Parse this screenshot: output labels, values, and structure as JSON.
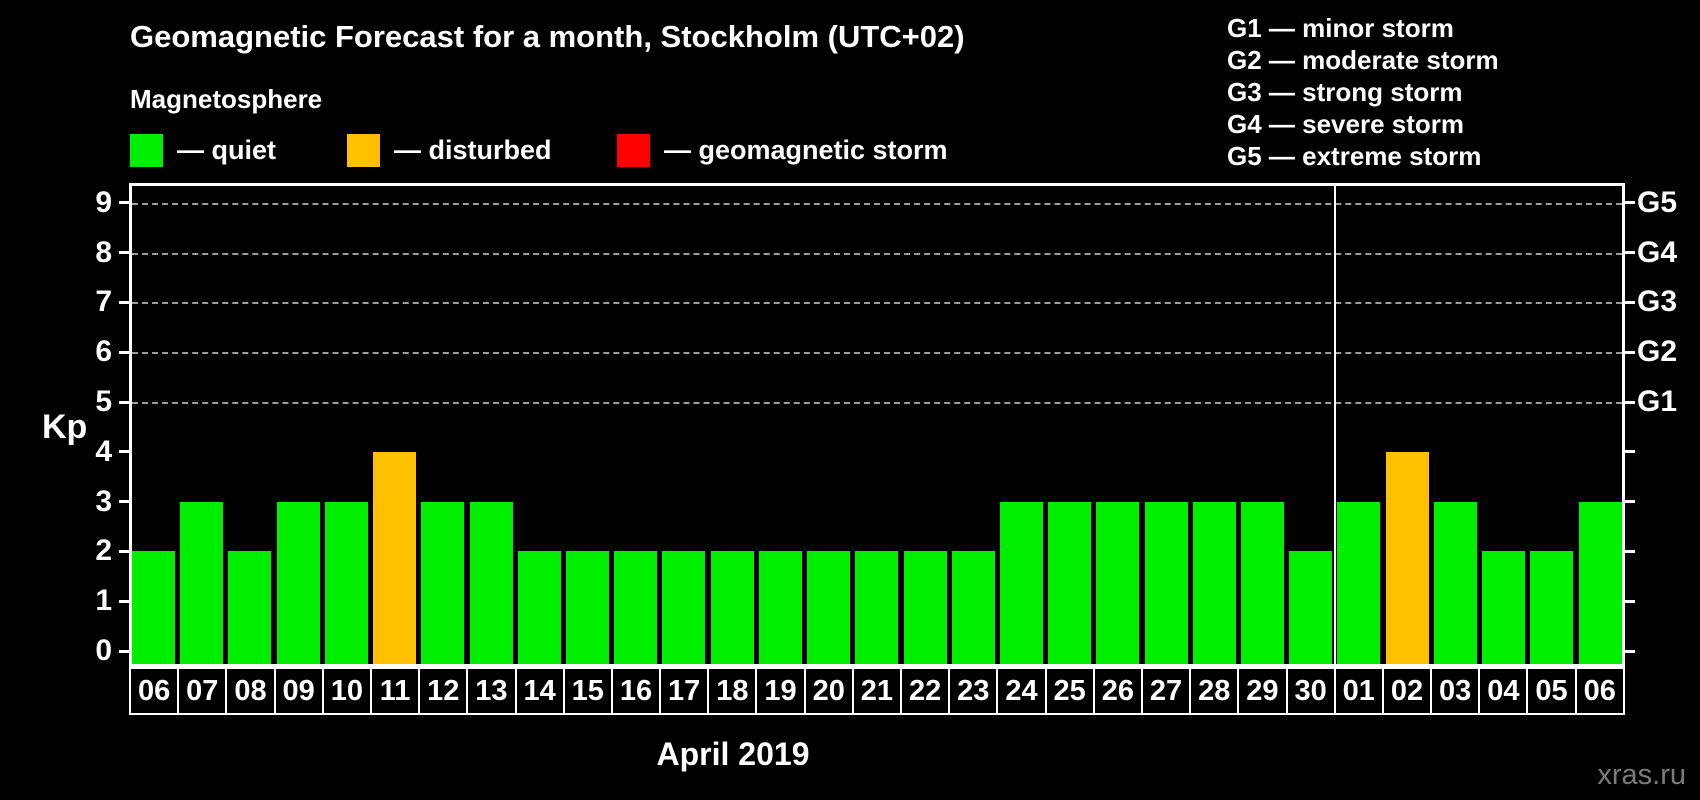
{
  "title": "Geomagnetic Forecast for a month, Stockholm (UTC+02)",
  "legend": {
    "title": "Magnetosphere",
    "items": [
      {
        "name": "quiet",
        "label": "— quiet",
        "color": "#00ee00"
      },
      {
        "name": "disturbed",
        "label": "— disturbed",
        "color": "#ffc000"
      },
      {
        "name": "storm",
        "label": "— geomagnetic storm",
        "color": "#ff0000"
      }
    ]
  },
  "storm_scale": [
    {
      "label": "G1 — minor storm"
    },
    {
      "label": "G2 — moderate storm"
    },
    {
      "label": "G3 — strong storm"
    },
    {
      "label": "G4 — severe storm"
    },
    {
      "label": "G5 — extreme storm"
    }
  ],
  "axis": {
    "y_title": "Kp",
    "y_ticks": [
      0,
      1,
      2,
      3,
      4,
      5,
      6,
      7,
      8,
      9
    ],
    "right_labels": [
      {
        "label": "G1",
        "kp": 5
      },
      {
        "label": "G2",
        "kp": 6
      },
      {
        "label": "G3",
        "kp": 7
      },
      {
        "label": "G4",
        "kp": 8
      },
      {
        "label": "G5",
        "kp": 9
      }
    ],
    "x_title": "April 2019"
  },
  "watermark": "xras.ru",
  "chart_data": {
    "type": "bar",
    "title": "Geomagnetic Forecast for a month, Stockholm (UTC+02)",
    "xlabel": "April 2019",
    "ylabel": "Kp",
    "ylim": [
      0,
      9
    ],
    "categories": [
      "06",
      "07",
      "08",
      "09",
      "10",
      "11",
      "12",
      "13",
      "14",
      "15",
      "16",
      "17",
      "18",
      "19",
      "20",
      "21",
      "22",
      "23",
      "24",
      "25",
      "26",
      "27",
      "28",
      "29",
      "30",
      "01",
      "02",
      "03",
      "04",
      "05",
      "06"
    ],
    "values": [
      2,
      3,
      2,
      3,
      3,
      4,
      3,
      3,
      2,
      2,
      2,
      2,
      2,
      2,
      2,
      2,
      2,
      2,
      3,
      3,
      3,
      3,
      3,
      3,
      2,
      3,
      4,
      3,
      2,
      2,
      3
    ],
    "statuses": [
      "quiet",
      "quiet",
      "quiet",
      "quiet",
      "quiet",
      "disturbed",
      "quiet",
      "quiet",
      "quiet",
      "quiet",
      "quiet",
      "quiet",
      "quiet",
      "quiet",
      "quiet",
      "quiet",
      "quiet",
      "quiet",
      "quiet",
      "quiet",
      "quiet",
      "quiet",
      "quiet",
      "quiet",
      "quiet",
      "quiet",
      "disturbed",
      "quiet",
      "quiet",
      "quiet",
      "quiet"
    ],
    "status_colors": {
      "quiet": "#00ee00",
      "disturbed": "#ffc000",
      "storm": "#ff0000"
    },
    "month_separator_after_index": 24,
    "grid": {
      "dashed_levels": [
        5,
        6,
        7,
        8,
        9
      ],
      "color": "#9c9c9c"
    },
    "legend_position": "top"
  }
}
